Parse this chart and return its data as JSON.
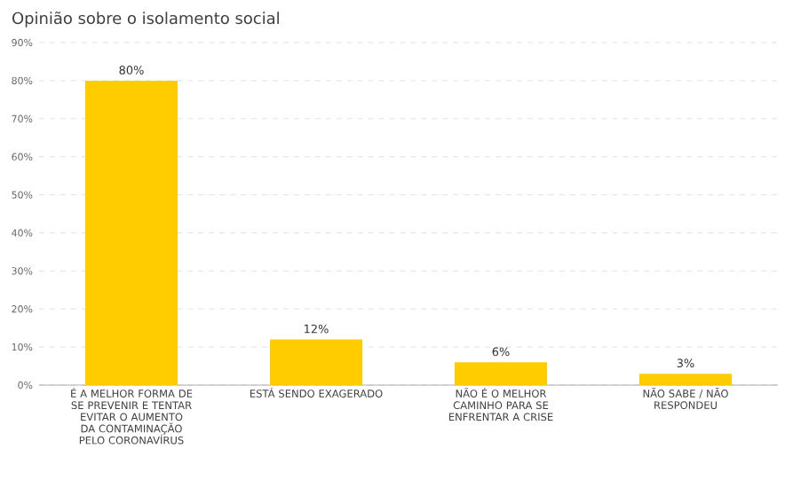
{
  "chart_data": {
    "type": "bar",
    "title": "Opinião sobre o isolamento social",
    "categories": [
      "É A MELHOR FORMA DE SE PREVENIR E TENTAR EVITAR O AUMENTO DA CONTAMINAÇÃO PELO CORONAVÍRUS",
      "ESTÁ SENDO EXAGERADO",
      "NÃO É O MELHOR CAMINHO PARA SE ENFRENTAR A CRISE",
      "NÃO SABE / NÃO RESPONDEU"
    ],
    "values": [
      80,
      12,
      6,
      3
    ],
    "value_labels": [
      "80%",
      "12%",
      "6%",
      "3%"
    ],
    "color": "#ffcc00",
    "ylim": [
      0,
      90
    ],
    "yticks": [
      {
        "value": 0,
        "label": "0%"
      },
      {
        "value": 10,
        "label": "10%"
      },
      {
        "value": 20,
        "label": "20%"
      },
      {
        "value": 30,
        "label": "30%"
      },
      {
        "value": 40,
        "label": "40%"
      },
      {
        "value": 50,
        "label": "50%"
      },
      {
        "value": 60,
        "label": "60%"
      },
      {
        "value": 70,
        "label": "70%"
      },
      {
        "value": 80,
        "label": "80%"
      },
      {
        "value": 90,
        "label": "90%"
      }
    ],
    "grid": "y"
  }
}
